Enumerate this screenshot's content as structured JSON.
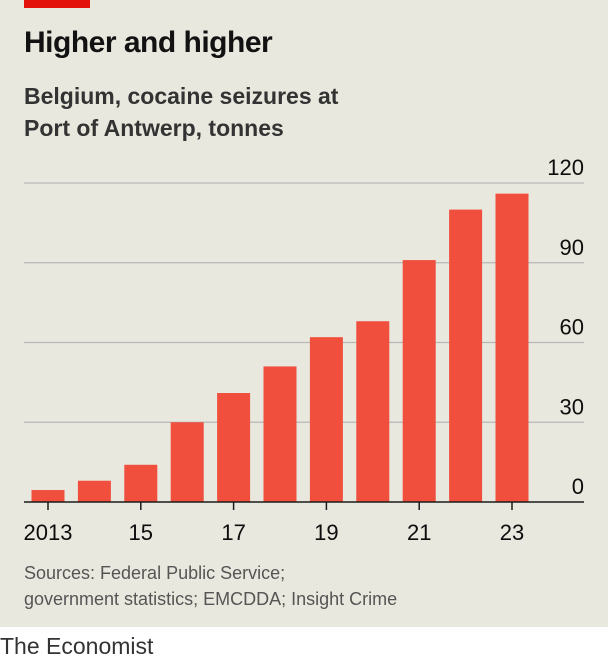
{
  "header": {
    "title": "Higher and higher",
    "subtitle_line1": "Belgium, cocaine seizures at",
    "subtitle_line2": "Port of Antwerp, tonnes"
  },
  "footer": {
    "source_line1": "Sources: Federal Public Service;",
    "source_line2": "government statistics; EMCDDA; Insight Crime",
    "brand": "The Economist"
  },
  "colors": {
    "bar": "#f04f3d",
    "accent": "#e3120b",
    "background": "#e9e8de"
  },
  "chart_data": {
    "type": "bar",
    "title": "Higher and higher",
    "subtitle": "Belgium, cocaine seizures at Port of Antwerp, tonnes",
    "categories": [
      "2013",
      "2014",
      "2015",
      "2016",
      "2017",
      "2018",
      "2019",
      "2020",
      "2021",
      "2022",
      "2023"
    ],
    "values": [
      4.5,
      8,
      14,
      30,
      41,
      51,
      62,
      68,
      91,
      110,
      116
    ],
    "x_tick_labels": [
      "2013",
      "15",
      "17",
      "19",
      "21",
      "23"
    ],
    "x_tick_categories": [
      "2013",
      "2015",
      "2017",
      "2019",
      "2021",
      "2023"
    ],
    "y_ticks": [
      0,
      30,
      60,
      90,
      120
    ],
    "ylim": [
      0,
      120
    ],
    "y_axis_side": "right",
    "grid": true
  }
}
